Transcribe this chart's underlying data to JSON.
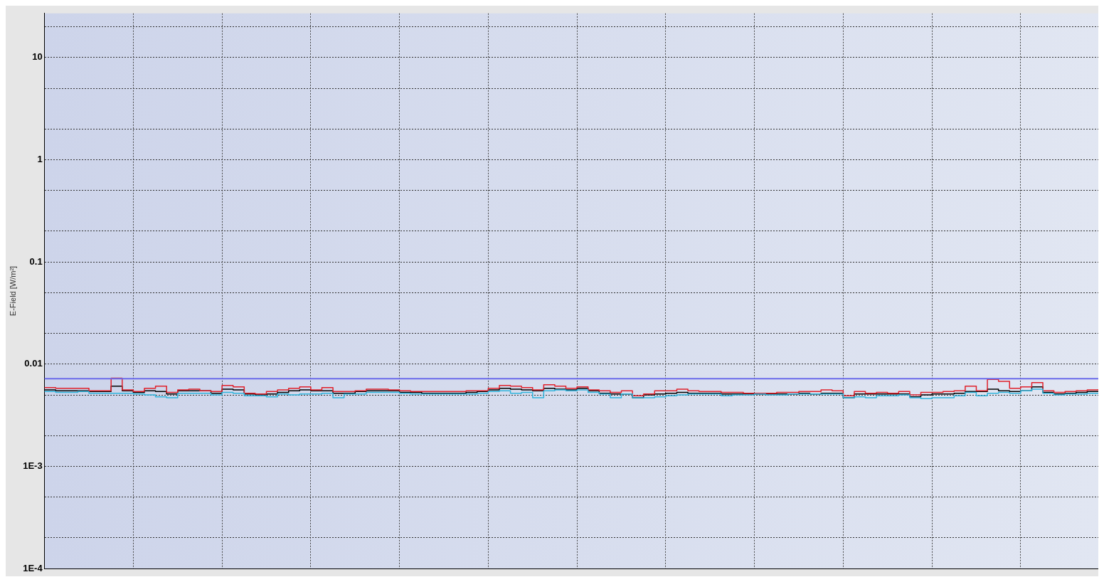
{
  "chart_data": {
    "type": "step",
    "ylabel": "E-Field [W/m²]",
    "log": "y",
    "grid": true,
    "legend": false,
    "marker": "none",
    "line_style": "solid",
    "tick_labels": "y",
    "categories": [
      null,
      null,
      null,
      null,
      null,
      null,
      null,
      null,
      null,
      null,
      null,
      null,
      null,
      null,
      null,
      null,
      null,
      null,
      null,
      null,
      null,
      null,
      null,
      null,
      null,
      null,
      null,
      null,
      null,
      null,
      null,
      null,
      null,
      null,
      null,
      null,
      null,
      null,
      null,
      null,
      null,
      null,
      null,
      null,
      null,
      null,
      null,
      null,
      null,
      null,
      null,
      null,
      null,
      null,
      null,
      null,
      null,
      null,
      null,
      null,
      null,
      null,
      null,
      null,
      null,
      null,
      null,
      null,
      null,
      null,
      null,
      null,
      null,
      null,
      null,
      null,
      null,
      null,
      null,
      null,
      null,
      null,
      null,
      null,
      null,
      null,
      null,
      null,
      null,
      null,
      null,
      null,
      null,
      null,
      null,
      null
    ],
    "ylim": [
      0.0001,
      27
    ],
    "yticks": [
      {
        "value": 0.0001,
        "label": "1E-4"
      },
      {
        "value": 0.0002,
        "label": null
      },
      {
        "value": 0.0005,
        "label": null
      },
      {
        "value": 0.001,
        "label": "1E-3"
      },
      {
        "value": 0.002,
        "label": null
      },
      {
        "value": 0.005,
        "label": null
      },
      0.01,
      {
        "value": 0.02,
        "label": null
      },
      {
        "value": 0.05,
        "label": null
      },
      0.1,
      {
        "value": 0.2,
        "label": null
      },
      {
        "value": 0.5,
        "label": null
      },
      1,
      {
        "value": 2,
        "label": null
      },
      {
        "value": 5,
        "label": null
      },
      10,
      {
        "value": 20,
        "label": null
      }
    ],
    "ref_lines": [
      {
        "axis": "y",
        "value": 0.0072,
        "color": "#6b6bea"
      }
    ],
    "series": [
      {
        "color": "#30b4dc",
        "values": [
          0.0054,
          0.0053,
          0.0053,
          0.0054,
          0.0052,
          0.0052,
          0.0052,
          0.0052,
          0.0051,
          0.005,
          0.0048,
          0.0047,
          0.0052,
          0.0052,
          0.0052,
          0.005,
          0.0053,
          0.0052,
          0.0049,
          0.0049,
          0.0048,
          0.0051,
          0.005,
          0.0051,
          0.0051,
          0.0052,
          0.0047,
          0.0051,
          0.0051,
          0.0053,
          0.0053,
          0.0053,
          0.0052,
          0.0051,
          0.0051,
          0.0051,
          0.0051,
          0.0051,
          0.0051,
          0.0052,
          0.0054,
          0.0055,
          0.0052,
          0.0053,
          0.0047,
          0.0055,
          0.0056,
          0.0055,
          0.0056,
          0.0053,
          0.0051,
          0.0047,
          0.0051,
          0.0047,
          0.0047,
          0.0048,
          0.0049,
          0.005,
          0.0051,
          0.0051,
          0.0051,
          0.0049,
          0.005,
          0.005,
          0.0051,
          0.005,
          0.005,
          0.0051,
          0.0051,
          0.0051,
          0.0051,
          0.0051,
          0.0047,
          0.0048,
          0.0047,
          0.0049,
          0.0049,
          0.005,
          0.0047,
          0.0046,
          0.0047,
          0.0047,
          0.0049,
          0.0053,
          0.0049,
          0.0052,
          0.0053,
          0.0052,
          0.0055,
          0.0057,
          0.0052,
          0.005,
          0.0051,
          0.0051,
          0.0052,
          0.0051
        ]
      },
      {
        "color": "#e0202a",
        "values": [
          0.0059,
          0.0058,
          0.0058,
          0.0058,
          0.0055,
          0.0055,
          0.0073,
          0.0056,
          0.0054,
          0.0058,
          0.0061,
          0.0053,
          0.0056,
          0.0057,
          0.0055,
          0.0054,
          0.0062,
          0.006,
          0.0052,
          0.0051,
          0.0054,
          0.0056,
          0.0058,
          0.006,
          0.0056,
          0.0059,
          0.0054,
          0.0054,
          0.0055,
          0.0057,
          0.0057,
          0.0056,
          0.0055,
          0.0054,
          0.0054,
          0.0054,
          0.0054,
          0.0054,
          0.0055,
          0.0055,
          0.0058,
          0.0062,
          0.0061,
          0.0059,
          0.0056,
          0.0063,
          0.0061,
          0.0058,
          0.006,
          0.0056,
          0.0055,
          0.0053,
          0.0055,
          0.0049,
          0.0051,
          0.0055,
          0.0055,
          0.0057,
          0.0055,
          0.0054,
          0.0054,
          0.0053,
          0.0053,
          0.0052,
          0.0052,
          0.0052,
          0.0053,
          0.0053,
          0.0054,
          0.0054,
          0.0056,
          0.0055,
          0.0049,
          0.0054,
          0.0052,
          0.0053,
          0.0052,
          0.0054,
          0.005,
          0.0053,
          0.0053,
          0.0054,
          0.0055,
          0.0061,
          0.0055,
          0.0071,
          0.0068,
          0.0058,
          0.006,
          0.0066,
          0.0055,
          0.0053,
          0.0054,
          0.0055,
          0.0056,
          0.0057
        ]
      },
      {
        "color": "#000000",
        "values": [
          0.0056,
          0.0055,
          0.0055,
          0.0055,
          0.0054,
          0.0054,
          0.0061,
          0.0055,
          0.0053,
          0.0055,
          0.0054,
          0.0051,
          0.0055,
          0.0055,
          0.0055,
          0.0052,
          0.0057,
          0.0056,
          0.0051,
          0.005,
          0.0051,
          0.0053,
          0.0055,
          0.0056,
          0.0055,
          0.0055,
          0.0052,
          0.0052,
          0.0054,
          0.0055,
          0.0055,
          0.0055,
          0.0053,
          0.0053,
          0.0052,
          0.0052,
          0.0052,
          0.0052,
          0.0053,
          0.0054,
          0.0056,
          0.0058,
          0.0057,
          0.0056,
          0.0055,
          0.0058,
          0.0057,
          0.0056,
          0.0058,
          0.0055,
          0.0052,
          0.0051,
          0.0051,
          0.0047,
          0.005,
          0.0051,
          0.0052,
          0.0053,
          0.0052,
          0.0052,
          0.0052,
          0.0051,
          0.0051,
          0.0051,
          0.0051,
          0.0051,
          0.0051,
          0.0051,
          0.0052,
          0.0051,
          0.0052,
          0.0052,
          0.0047,
          0.0051,
          0.0051,
          0.0051,
          0.0051,
          0.0051,
          0.0048,
          0.005,
          0.0051,
          0.0051,
          0.0052,
          0.0054,
          0.0054,
          0.0057,
          0.0055,
          0.0054,
          0.0055,
          0.006,
          0.0053,
          0.0051,
          0.0052,
          0.0053,
          0.0054,
          0.0054
        ]
      }
    ]
  }
}
